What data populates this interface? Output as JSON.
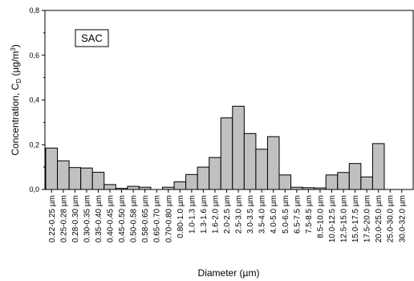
{
  "chart_data": {
    "type": "bar",
    "title": "",
    "xlabel": "Diameter (µm)",
    "ylabel_main": "Concentration, C",
    "ylabel_sub": "D",
    "ylabel_unit_start": " (µg/m",
    "ylabel_sup": "3",
    "ylabel_unit_end": ")",
    "legend": "SAC",
    "legend_position": "top-left",
    "ylim": [
      0,
      0.8
    ],
    "yticks": [
      {
        "value": 0.0,
        "label": "0,0"
      },
      {
        "value": 0.2,
        "label": "0,2"
      },
      {
        "value": 0.4,
        "label": "0,4"
      },
      {
        "value": 0.6,
        "label": "0,6"
      },
      {
        "value": 0.8,
        "label": "0,8"
      }
    ],
    "categories": [
      "0.22-0.25 µm",
      "0.25-0.28 µm",
      "0.28-0.30 µm",
      "0.30-0.35 µm",
      "0.35-0.40 µm",
      "0.40-0.45 µm",
      "0.45-0.50 µm",
      "0.50-0.58 µm",
      "0.58-0.65 µm",
      "0.65-0.70 µm",
      "0.70-0.80 µm",
      "0.80-1.0 µm",
      "1.0-1.3 µm",
      "1.3-1.6 µm",
      "1.6-2.0 µm",
      "2.0-2.5 µm",
      "2.5-3.0 µm",
      "3.0-3.5 µm",
      "3.5-4.0 µm",
      "4.0-5.0 µm",
      "5.0-6.5 µm",
      "6.5-7.5 µm",
      "7.5-8.5 µm",
      "8.5-10.0 µm",
      "10.0-12.5 µm",
      "12.5-15.0 µm",
      "15.0-17.5 µm",
      "17.5-20.0 µm",
      "20.0-25.0 µm",
      "25.0-30.0 µm",
      "30.0-32.0 µm"
    ],
    "values": [
      0.185,
      0.128,
      0.098,
      0.096,
      0.077,
      0.022,
      0.005,
      0.014,
      0.01,
      0.0,
      0.01,
      0.034,
      0.067,
      0.1,
      0.143,
      0.32,
      0.372,
      0.25,
      0.18,
      0.236,
      0.065,
      0.01,
      0.008,
      0.007,
      0.065,
      0.076,
      0.116,
      0.056,
      0.205,
      0.0,
      0.0
    ],
    "bar_color": "#c0c0c0",
    "edge_color": "#000000",
    "grid": false
  }
}
